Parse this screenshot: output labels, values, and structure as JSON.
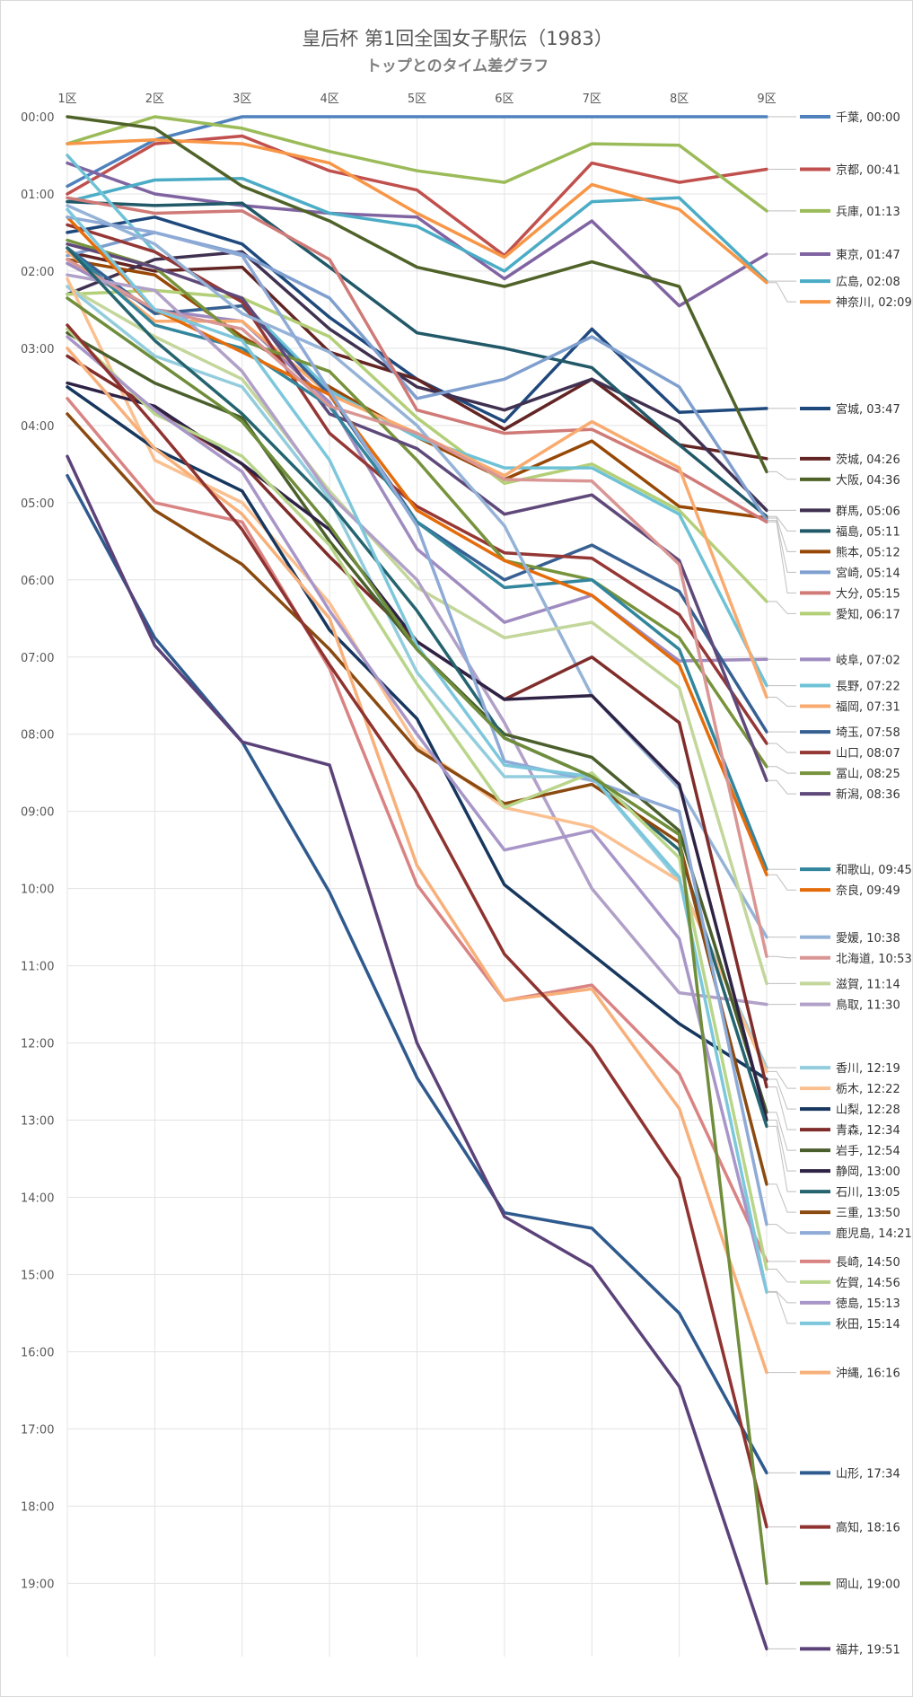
{
  "chart_data": {
    "type": "line",
    "title": "皇后杯 第1回全国女子駅伝（1983）",
    "subtitle": "トップとのタイム差グラフ",
    "categories": [
      "1区",
      "2区",
      "3区",
      "4区",
      "5区",
      "6区",
      "7区",
      "8区",
      "9区"
    ],
    "y_ticks": [
      "00:00",
      "01:00",
      "02:00",
      "03:00",
      "04:00",
      "05:00",
      "06:00",
      "07:00",
      "08:00",
      "09:00",
      "10:00",
      "11:00",
      "12:00",
      "13:00",
      "14:00",
      "15:00",
      "16:00",
      "17:00",
      "18:00",
      "19:00"
    ],
    "ylim_minutes": [
      0,
      19.95
    ],
    "y_reversed": true,
    "series": [
      {
        "name": "千葉",
        "label": "千葉, 00:00",
        "color": "#4f81bd",
        "values": [
          0.9,
          0.3,
          0,
          0,
          0,
          0,
          0,
          0,
          0
        ]
      },
      {
        "name": "京都",
        "label": "京都, 00:41",
        "color": "#c0504d",
        "values": [
          1.0,
          0.35,
          0.25,
          0.7,
          0.95,
          1.8,
          0.6,
          0.85,
          0.68
        ]
      },
      {
        "name": "兵庫",
        "label": "兵庫, 01:13",
        "color": "#9bbb59",
        "values": [
          0.35,
          0,
          0.15,
          0.45,
          0.7,
          0.85,
          0.35,
          0.37,
          1.22
        ]
      },
      {
        "name": "東京",
        "label": "東京, 01:47",
        "color": "#8064a2",
        "values": [
          0.6,
          1.0,
          1.15,
          1.25,
          1.3,
          2.1,
          1.35,
          2.45,
          1.78
        ]
      },
      {
        "name": "広島",
        "label": "広島, 02:08",
        "color": "#4bacc6",
        "values": [
          1.1,
          0.82,
          0.8,
          1.25,
          1.42,
          2.0,
          1.1,
          1.05,
          2.13
        ]
      },
      {
        "name": "神奈川",
        "label": "神奈川, 02:09",
        "color": "#f79646",
        "values": [
          0.35,
          0.3,
          0.35,
          0.6,
          1.25,
          1.82,
          0.88,
          1.2,
          2.15
        ]
      },
      {
        "name": "宮城",
        "label": "宮城, 03:47",
        "color": "#1f497d",
        "values": [
          1.5,
          1.3,
          1.65,
          2.6,
          3.4,
          3.95,
          2.75,
          3.83,
          3.78
        ]
      },
      {
        "name": "茨城",
        "label": "茨城, 04:26",
        "color": "#632523",
        "values": [
          1.75,
          2.0,
          1.95,
          3.05,
          3.4,
          4.05,
          3.4,
          4.25,
          4.43
        ]
      },
      {
        "name": "大阪",
        "label": "大阪, 04:36",
        "color": "#4f6228",
        "values": [
          0,
          0.15,
          0.9,
          1.35,
          1.95,
          2.2,
          1.88,
          2.2,
          4.6
        ]
      },
      {
        "name": "群馬",
        "label": "群馬, 05:06",
        "color": "#403151",
        "values": [
          2.3,
          1.85,
          1.75,
          2.75,
          3.5,
          3.8,
          3.4,
          3.95,
          5.1
        ]
      },
      {
        "name": "福島",
        "label": "福島, 05:11",
        "color": "#215968",
        "values": [
          1.1,
          1.15,
          1.12,
          1.95,
          2.8,
          3.0,
          3.25,
          4.25,
          5.18
        ]
      },
      {
        "name": "熊本",
        "label": "熊本, 05:12",
        "color": "#974806",
        "values": [
          1.85,
          2.05,
          2.85,
          3.5,
          4.15,
          4.7,
          4.2,
          5.05,
          5.2
        ]
      },
      {
        "name": "宮崎",
        "label": "宮崎, 05:14",
        "color": "#7f9fcf",
        "values": [
          1.8,
          1.5,
          1.78,
          2.35,
          3.65,
          3.4,
          2.85,
          3.5,
          5.23
        ]
      },
      {
        "name": "大分",
        "label": "大分, 05:15",
        "color": "#d07a77",
        "values": [
          1.05,
          1.25,
          1.22,
          1.85,
          3.8,
          4.1,
          4.05,
          4.6,
          5.25
        ]
      },
      {
        "name": "愛知",
        "label": "愛知, 06:17",
        "color": "#b3cf78",
        "values": [
          2.3,
          2.25,
          2.35,
          2.85,
          3.9,
          4.75,
          4.5,
          5.1,
          6.28
        ]
      },
      {
        "name": "岐阜",
        "label": "岐阜, 07:02",
        "color": "#9f8bbf",
        "values": [
          1.9,
          2.5,
          2.65,
          3.7,
          5.6,
          6.55,
          6.2,
          7.05,
          7.03
        ]
      },
      {
        "name": "長野",
        "label": "長野, 07:22",
        "color": "#6ec2d6",
        "values": [
          0.5,
          1.75,
          2.4,
          3.55,
          4.15,
          4.55,
          4.55,
          5.15,
          7.37
        ]
      },
      {
        "name": "福岡",
        "label": "福岡, 07:31",
        "color": "#f9ab6f",
        "values": [
          1.75,
          2.65,
          2.65,
          3.6,
          4.1,
          4.65,
          3.95,
          4.55,
          7.52
        ]
      },
      {
        "name": "埼玉",
        "label": "埼玉, 07:58",
        "color": "#376092",
        "values": [
          1.7,
          2.55,
          2.45,
          3.6,
          5.25,
          6.0,
          5.55,
          6.15,
          7.97
        ]
      },
      {
        "name": "山口",
        "label": "山口, 08:07",
        "color": "#953735",
        "values": [
          1.4,
          1.75,
          2.4,
          4.1,
          5.05,
          5.65,
          5.72,
          6.45,
          8.12
        ]
      },
      {
        "name": "冨山",
        "label": "冨山, 08:25",
        "color": "#77933c",
        "values": [
          1.6,
          1.95,
          2.9,
          3.3,
          4.45,
          5.75,
          6.0,
          6.75,
          8.42
        ]
      },
      {
        "name": "新潟",
        "label": "新潟, 08:36",
        "color": "#5f497a",
        "values": [
          1.65,
          1.95,
          2.35,
          3.85,
          4.3,
          5.15,
          4.9,
          5.75,
          8.6
        ]
      },
      {
        "name": "和歌山",
        "label": "和歌山, 09:45",
        "color": "#31859c",
        "values": [
          1.7,
          2.7,
          3.0,
          3.75,
          5.25,
          6.1,
          6.0,
          6.9,
          9.75
        ]
      },
      {
        "name": "奈良",
        "label": "奈良, 09:49",
        "color": "#e46c0a",
        "values": [
          1.3,
          2.5,
          3.05,
          3.6,
          5.1,
          5.75,
          6.2,
          7.1,
          9.82
        ]
      },
      {
        "name": "愛媛",
        "label": "愛媛, 10:38",
        "color": "#95b3d7",
        "values": [
          1.15,
          1.65,
          2.55,
          3.05,
          4.0,
          5.3,
          7.5,
          8.7,
          10.63
        ]
      },
      {
        "name": "北海道",
        "label": "北海道, 10:53",
        "color": "#d99694",
        "values": [
          1.85,
          2.5,
          2.75,
          3.75,
          4.1,
          4.7,
          4.72,
          5.8,
          10.88
        ]
      },
      {
        "name": "滋賀",
        "label": "滋賀, 11:14",
        "color": "#c3d69b",
        "values": [
          2.2,
          2.85,
          3.4,
          4.85,
          6.1,
          6.75,
          6.55,
          7.4,
          11.23
        ]
      },
      {
        "name": "鳥取",
        "label": "鳥取, 11:30",
        "color": "#b1a0c7",
        "values": [
          2.05,
          2.25,
          3.3,
          4.9,
          6.0,
          7.85,
          10.0,
          11.35,
          11.5
        ]
      },
      {
        "name": "香川",
        "label": "香川, 12:19",
        "color": "#93cddd",
        "values": [
          2.2,
          3.1,
          3.5,
          4.95,
          7.2,
          8.55,
          8.55,
          9.9,
          12.32
        ]
      },
      {
        "name": "栃木",
        "label": "栃木, 12:22",
        "color": "#fac090",
        "values": [
          2.1,
          4.45,
          5.0,
          6.3,
          8.15,
          8.95,
          9.2,
          9.9,
          12.37
        ]
      },
      {
        "name": "山梨",
        "label": "山梨, 12:28",
        "color": "#17375e",
        "values": [
          3.5,
          4.3,
          4.85,
          6.65,
          7.8,
          9.95,
          10.85,
          11.75,
          12.47
        ]
      },
      {
        "name": "青森",
        "label": "青森, 12:34",
        "color": "#7f2d2b",
        "values": [
          3.1,
          3.8,
          4.5,
          5.7,
          6.8,
          7.55,
          7.0,
          7.85,
          12.57
        ]
      },
      {
        "name": "岩手",
        "label": "岩手, 12:54",
        "color": "#4a5f2c",
        "values": [
          2.8,
          3.45,
          3.9,
          5.5,
          6.9,
          8.0,
          8.3,
          9.25,
          12.9
        ]
      },
      {
        "name": "静岡",
        "label": "静岡, 13:00",
        "color": "#2e2245",
        "values": [
          3.45,
          3.75,
          4.5,
          5.35,
          6.8,
          7.55,
          7.5,
          8.65,
          13.0
        ]
      },
      {
        "name": "石川",
        "label": "石川, 13:05",
        "color": "#25646f",
        "values": [
          1.7,
          2.9,
          3.85,
          5.0,
          6.4,
          8.05,
          8.55,
          9.5,
          13.08
        ]
      },
      {
        "name": "三重",
        "label": "三重, 13:50",
        "color": "#8a4a10",
        "values": [
          3.85,
          5.1,
          5.8,
          6.9,
          8.2,
          8.9,
          8.65,
          9.4,
          13.83
        ]
      },
      {
        "name": "鹿児島",
        "label": "鹿児島, 14:21",
        "color": "#8eaad6",
        "values": [
          1.3,
          1.5,
          1.8,
          3.55,
          5.3,
          8.35,
          8.6,
          9.0,
          14.35
        ]
      },
      {
        "name": "長崎",
        "label": "長崎, 14:50",
        "color": "#d98383",
        "values": [
          3.65,
          5.0,
          5.25,
          7.15,
          9.95,
          11.45,
          11.25,
          12.4,
          14.83
        ]
      },
      {
        "name": "佐賀",
        "label": "佐賀, 14:56",
        "color": "#b9d58a",
        "values": [
          2.75,
          3.85,
          4.4,
          5.55,
          7.35,
          8.95,
          8.5,
          9.6,
          14.93
        ]
      },
      {
        "name": "徳島",
        "label": "徳島, 15:13",
        "color": "#a896c8",
        "values": [
          2.85,
          3.8,
          4.6,
          6.4,
          8.0,
          9.5,
          9.25,
          10.65,
          15.22
        ]
      },
      {
        "name": "秋田",
        "label": "秋田, 15:14",
        "color": "#7dc7dc",
        "values": [
          1.2,
          2.5,
          2.9,
          4.45,
          6.85,
          8.4,
          8.55,
          9.85,
          15.23
        ]
      },
      {
        "name": "沖縄",
        "label": "沖縄, 16:16",
        "color": "#f8b07a",
        "values": [
          3.0,
          4.3,
          5.15,
          6.5,
          9.7,
          11.45,
          11.3,
          12.85,
          16.27
        ]
      },
      {
        "name": "山形",
        "label": "山形, 17:34",
        "color": "#2f5a8e",
        "values": [
          4.65,
          6.75,
          8.1,
          10.05,
          12.45,
          14.2,
          14.4,
          15.5,
          17.57
        ]
      },
      {
        "name": "高知",
        "label": "高知, 18:16",
        "color": "#8e3330",
        "values": [
          2.7,
          4.0,
          5.35,
          7.1,
          8.75,
          10.85,
          12.05,
          13.75,
          18.27
        ]
      },
      {
        "name": "岡山",
        "label": "岡山, 19:00",
        "color": "#6f8d3a",
        "values": [
          2.35,
          3.15,
          3.95,
          5.3,
          6.9,
          8.05,
          8.55,
          9.3,
          19.0
        ]
      },
      {
        "name": "福井",
        "label": "福井, 19:51",
        "color": "#5b4279",
        "values": [
          4.4,
          6.85,
          8.1,
          8.4,
          12.0,
          14.25,
          14.9,
          16.45,
          19.85
        ]
      }
    ]
  }
}
